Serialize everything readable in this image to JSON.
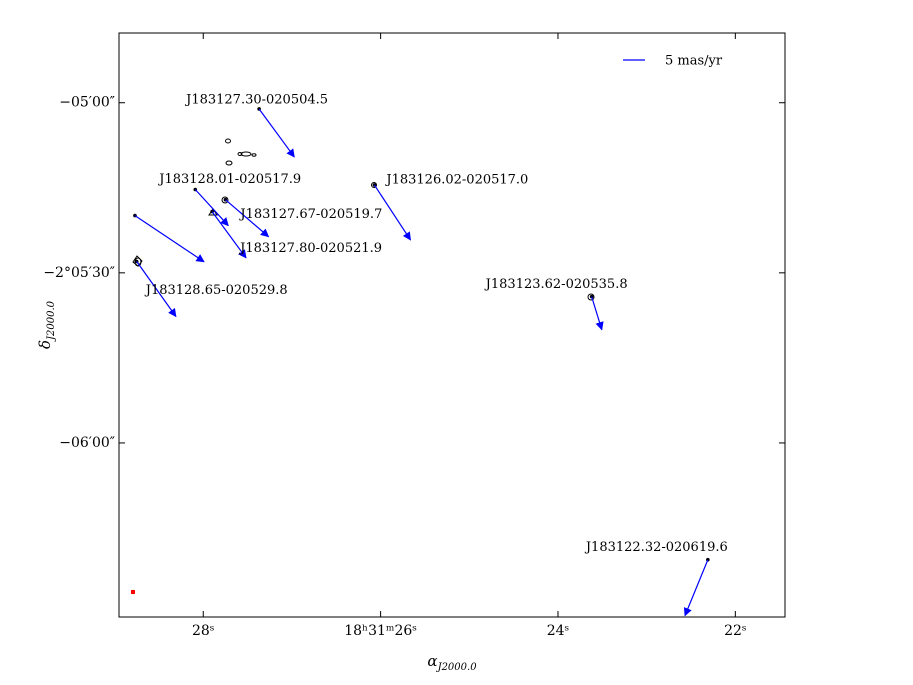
{
  "chart_data": {
    "type": "scatter",
    "x": [
      27.37,
      28.09,
      27.75,
      27.9,
      28.75,
      26.07,
      23.62,
      22.31,
      28.77
    ],
    "y": [
      -301.1,
      -315.3,
      -317.1,
      -319.2,
      -328.0,
      -314.5,
      -334.2,
      -380.6,
      -319.9
    ],
    "point_labels": [
      "J183127.30-020504.5",
      "J183128.01-020517.9",
      "J183127.67-020519.7",
      "J183127.80-020521.9",
      "J183128.65-020529.8",
      "J183126.02-020517.0",
      "J183123.62-020535.8",
      "J183122.32-020619.6",
      null
    ],
    "pmra": [
      -8.0,
      -7.5,
      -9.8,
      -7.7,
      -8.9,
      -8.2,
      -2.3,
      5.2,
      -15.7
    ],
    "pmdec": [
      -10.9,
      -8.2,
      -8.4,
      -10.5,
      -12.5,
      -12.5,
      -7.5,
      -12.7,
      -10.5
    ],
    "color": "#000000",
    "arrow_color": "#0000ff",
    "xlim": [
      28.95,
      21.44
    ],
    "ylim": [
      -390.7,
      -287.7
    ],
    "xticks": [
      {
        "value": 28,
        "label": "28ˢ"
      },
      {
        "value": 26,
        "label": "18ʰ31ᵐ26ˢ"
      },
      {
        "value": 24,
        "label": "24ˢ"
      },
      {
        "value": 22,
        "label": "22ˢ"
      }
    ],
    "yticks": [
      {
        "value": -300,
        "label": "−05′00″"
      },
      {
        "value": -330,
        "label": "−2°05′30″"
      },
      {
        "value": -360,
        "label": "−06′00″"
      }
    ],
    "x_label": {
      "symbol": "α",
      "subscript": "J2000.0"
    },
    "y_label": {
      "symbol": "δ",
      "subscript": "J2000.0"
    },
    "legend": {
      "label": "5 mas/yr",
      "value": 5,
      "position": "upper right"
    }
  }
}
